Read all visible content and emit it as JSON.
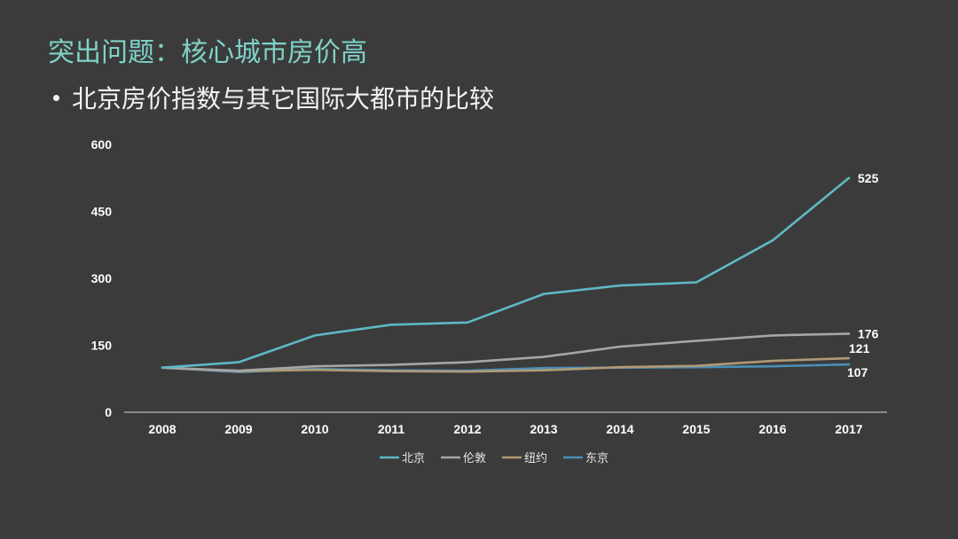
{
  "slide": {
    "title": "突出问题：核心城市房价高",
    "bullet": "北京房价指数与其它国际大都市的比较"
  },
  "chart_data": {
    "type": "line",
    "title": "",
    "xlabel": "",
    "ylabel": "",
    "categories": [
      "2008",
      "2009",
      "2010",
      "2011",
      "2012",
      "2013",
      "2014",
      "2015",
      "2016",
      "2017"
    ],
    "ylim": [
      0,
      600
    ],
    "yticks": [
      0,
      150,
      300,
      450,
      600
    ],
    "grid": false,
    "legend_position": "bottom",
    "series": [
      {
        "name": "北京",
        "color": "#5fb8c4",
        "values": [
          100,
          112,
          172,
          196,
          201,
          265,
          284,
          291,
          385,
          525
        ],
        "end_label": "525"
      },
      {
        "name": "伦敦",
        "color": "#a6a6a6",
        "values": [
          100,
          93,
          103,
          106,
          112,
          124,
          147,
          160,
          172,
          176
        ],
        "end_label": "176"
      },
      {
        "name": "纽约",
        "color": "#b09a74",
        "values": [
          100,
          92,
          95,
          92,
          91,
          94,
          101,
          104,
          115,
          121
        ],
        "end_label": "121"
      },
      {
        "name": "东京",
        "color": "#4a8fb5",
        "values": [
          100,
          90,
          97,
          94,
          93,
          99,
          100,
          101,
          103,
          107
        ],
        "end_label": "107"
      }
    ]
  }
}
